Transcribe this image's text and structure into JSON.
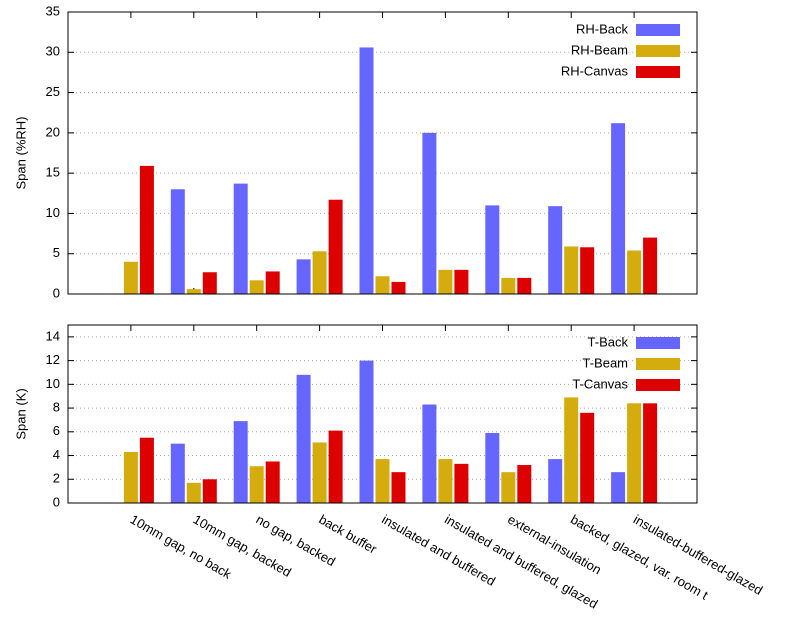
{
  "chart_data": [
    {
      "type": "bar",
      "ylabel": "Span (%RH)",
      "legend": "top-right",
      "categories": [
        null,
        null,
        null,
        null,
        null,
        null,
        null,
        null,
        null
      ],
      "ylim": [
        0,
        35
      ],
      "yticks": [
        0,
        5,
        10,
        15,
        20,
        25,
        30,
        35
      ],
      "series": [
        {
          "name": "RH-Back",
          "color": "#6666ff",
          "values": [
            null,
            13,
            13.7,
            4.3,
            30.6,
            20,
            11,
            10.9,
            21.2
          ]
        },
        {
          "name": "RH-Beam",
          "color": "#d4ac0d",
          "values": [
            4,
            0.6,
            1.7,
            5.3,
            2.2,
            3,
            2,
            5.9,
            5.4
          ]
        },
        {
          "name": "RH-Canvas",
          "color": "#dd0000",
          "values": [
            15.9,
            2.7,
            2.8,
            11.7,
            1.5,
            3,
            2,
            5.8,
            7
          ]
        }
      ]
    },
    {
      "type": "bar",
      "ylabel": "Span (K)",
      "legend": "top-right",
      "categories": [
        "10mm gap, no back",
        "10mm gap, backed",
        "no gap, backed",
        "back buffer",
        "insulated and buffered",
        "insulated and buffered, glazed",
        "external-insulation",
        "backed, glazed, var. room t",
        "insulated-buffered-glazed"
      ],
      "ylim": [
        0,
        15
      ],
      "yticks": [
        0,
        2,
        4,
        6,
        8,
        10,
        12,
        14
      ],
      "series": [
        {
          "name": "T-Back",
          "color": "#6666ff",
          "values": [
            null,
            5,
            6.9,
            10.8,
            12,
            8.3,
            5.9,
            3.7,
            2.6
          ]
        },
        {
          "name": "T-Beam",
          "color": "#d4ac0d",
          "values": [
            4.3,
            1.7,
            3.1,
            5.1,
            3.7,
            3.7,
            2.6,
            8.9,
            8.4
          ]
        },
        {
          "name": "T-Canvas",
          "color": "#dd0000",
          "values": [
            5.5,
            2,
            3.5,
            6.1,
            2.6,
            3.3,
            3.2,
            7.6,
            8.4
          ]
        }
      ]
    }
  ]
}
